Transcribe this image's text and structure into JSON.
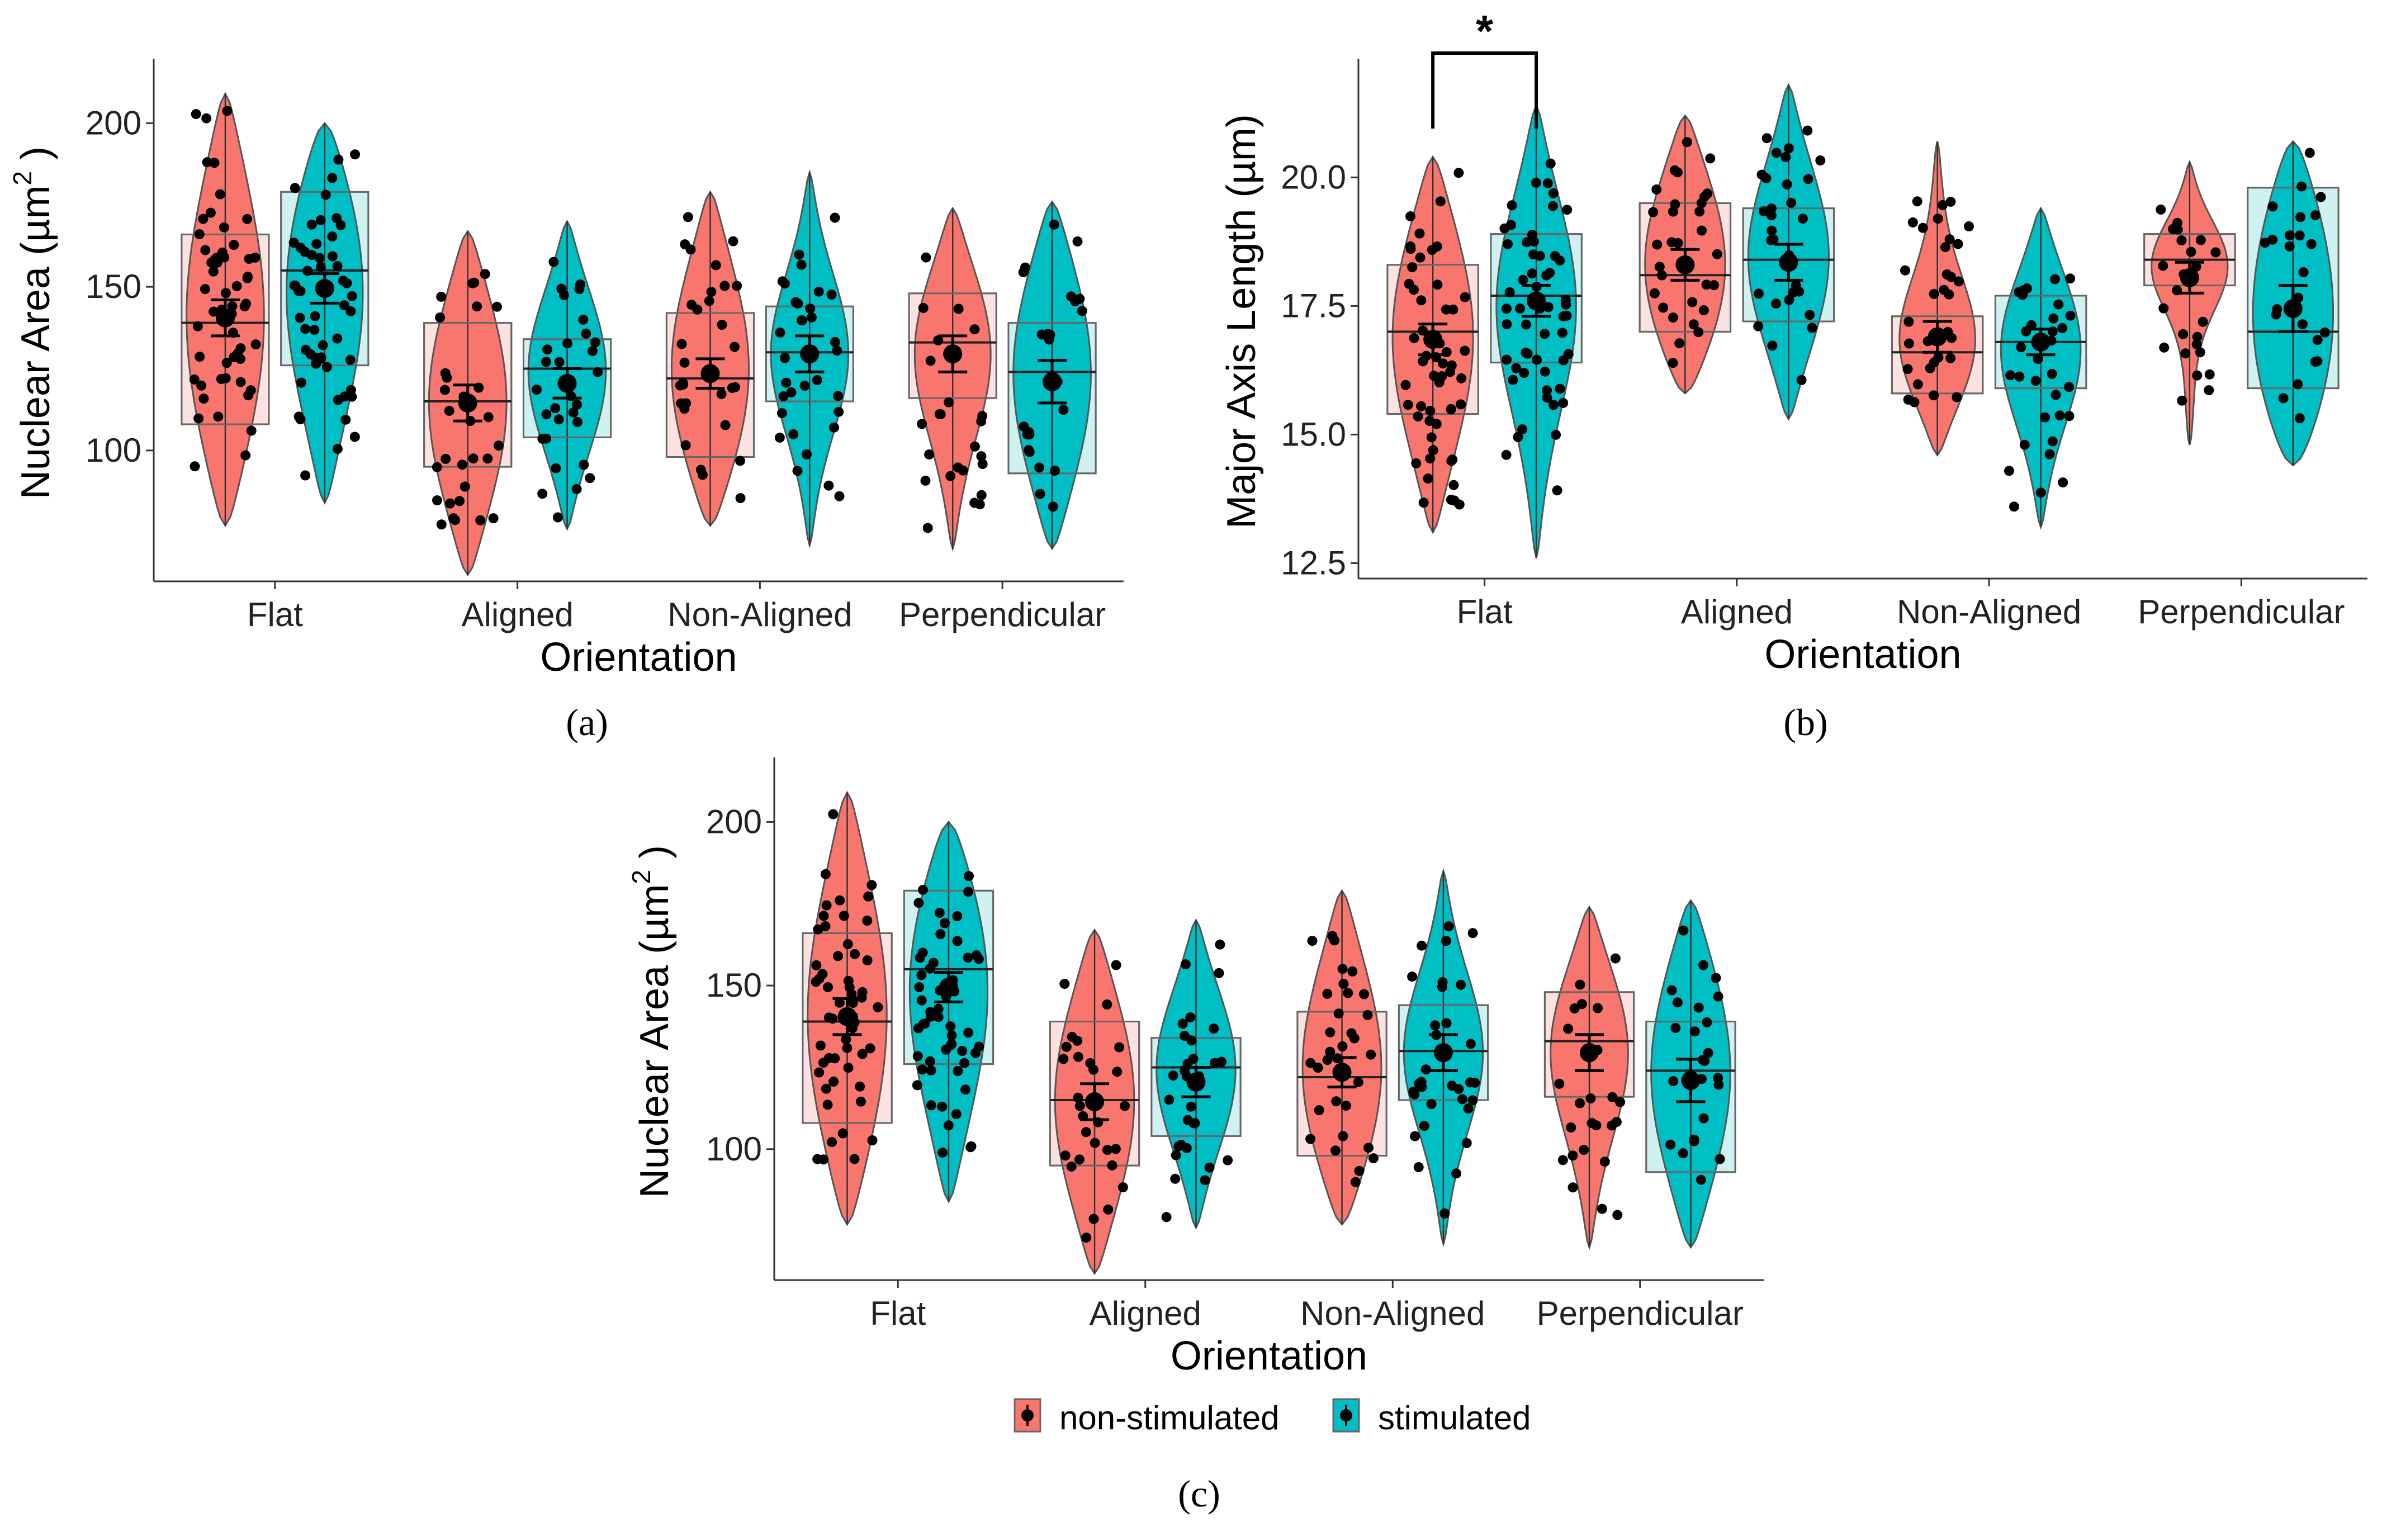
{
  "colors": {
    "nonstim": "#F8766D",
    "stim": "#00BFC4",
    "box_nonstim": "#FBE1E0",
    "box_stim": "#D0F1F2",
    "points": "#000000"
  },
  "captions": [
    "(a)",
    "(b)",
    "(c)"
  ],
  "legend": {
    "items": [
      "non-stimulated",
      "stimulated"
    ],
    "placement": "bottom"
  },
  "chart_data": [
    {
      "id": "a",
      "type": "violin",
      "xlabel": "Orientation",
      "ylabel": "Nuclear Area (µm",
      "ylabel_sup": "2",
      "ylabel_close": " )",
      "ylim": [
        60,
        218
      ],
      "yticks": [
        100,
        150,
        200
      ],
      "categories": [
        "Flat",
        "Aligned",
        "Non-Aligned",
        "Perpendicular"
      ],
      "series": [
        {
          "group": "non-stimulated",
          "stats": [
            {
              "min": 77,
              "max": 209,
              "q1": 108,
              "median": 139,
              "q3": 166,
              "mean": 140.5,
              "se": 5.5,
              "n": 55
            },
            {
              "min": 62,
              "max": 167,
              "q1": 95,
              "median": 115,
              "q3": 139,
              "mean": 114.5,
              "se": 5.5,
              "n": 30
            },
            {
              "min": 77,
              "max": 179,
              "q1": 98,
              "median": 122,
              "q3": 142,
              "mean": 123.5,
              "se": 4.5,
              "n": 32
            },
            {
              "min": 70,
              "max": 174,
              "q1": 116,
              "median": 133,
              "q3": 148,
              "mean": 129.5,
              "se": 5.5,
              "n": 24
            }
          ]
        },
        {
          "group": "stimulated",
          "stats": [
            {
              "min": 84,
              "max": 200,
              "q1": 126,
              "median": 155,
              "q3": 179,
              "mean": 149.5,
              "se": 4.5,
              "n": 55
            },
            {
              "min": 76,
              "max": 170,
              "q1": 104,
              "median": 125,
              "q3": 134,
              "mean": 120.5,
              "se": 4.5,
              "n": 30
            },
            {
              "min": 71,
              "max": 185,
              "q1": 115,
              "median": 130,
              "q3": 144,
              "mean": 129.5,
              "se": 5.5,
              "n": 32
            },
            {
              "min": 70,
              "max": 176,
              "q1": 93,
              "median": 124,
              "q3": 139,
              "mean": 121.0,
              "se": 6.5,
              "n": 24
            }
          ]
        }
      ]
    },
    {
      "id": "b",
      "type": "violin",
      "xlabel": "Orientation",
      "ylabel": "Major Axis Length (µm)",
      "ylim": [
        12.2,
        22.2
      ],
      "yticks": [
        12.5,
        15.0,
        17.5,
        20.0
      ],
      "significance": {
        "label": "*",
        "between": [
          "Flat non-stimulated",
          "Flat stimulated"
        ]
      },
      "categories": [
        "Flat",
        "Aligned",
        "Non-Aligned",
        "Perpendicular"
      ],
      "series": [
        {
          "group": "non-stimulated",
          "stats": [
            {
              "min": 13.1,
              "max": 20.4,
              "q1": 15.4,
              "median": 17.0,
              "q3": 18.3,
              "mean": 16.85,
              "se": 0.3,
              "n": 55
            },
            {
              "min": 15.8,
              "max": 21.2,
              "q1": 17.0,
              "median": 18.1,
              "q3": 19.5,
              "mean": 18.3,
              "se": 0.3,
              "n": 30
            },
            {
              "min": 14.6,
              "max": 20.7,
              "q1": 15.8,
              "median": 16.6,
              "q3": 17.3,
              "mean": 16.9,
              "se": 0.3,
              "n": 32
            },
            {
              "min": 14.8,
              "max": 20.3,
              "q1": 17.9,
              "median": 18.4,
              "q3": 18.9,
              "mean": 18.05,
              "se": 0.3,
              "n": 24
            }
          ]
        },
        {
          "group": "stimulated",
          "stats": [
            {
              "min": 12.6,
              "max": 21.4,
              "q1": 16.4,
              "median": 17.7,
              "q3": 18.9,
              "mean": 17.6,
              "se": 0.3,
              "n": 55
            },
            {
              "min": 15.3,
              "max": 21.8,
              "q1": 17.2,
              "median": 18.4,
              "q3": 19.4,
              "mean": 18.35,
              "se": 0.35,
              "n": 30
            },
            {
              "min": 13.2,
              "max": 19.4,
              "q1": 15.9,
              "median": 16.8,
              "q3": 17.7,
              "mean": 16.8,
              "se": 0.25,
              "n": 32
            },
            {
              "min": 14.4,
              "max": 20.7,
              "q1": 15.9,
              "median": 17.0,
              "q3": 19.8,
              "mean": 17.45,
              "se": 0.45,
              "n": 24
            }
          ]
        }
      ]
    },
    {
      "id": "c",
      "type": "violin",
      "xlabel": "Orientation",
      "ylabel": "Nuclear Area (µm",
      "ylabel_sup": "2",
      "ylabel_close": " )",
      "ylim": [
        60,
        218
      ],
      "yticks": [
        100,
        150,
        200
      ],
      "categories": [
        "Flat",
        "Aligned",
        "Non-Aligned",
        "Perpendicular"
      ],
      "series": [
        {
          "group": "non-stimulated",
          "stats": [
            {
              "min": 77,
              "max": 209,
              "q1": 108,
              "median": 139,
              "q3": 166,
              "mean": 140.5,
              "se": 5.5,
              "n": 55
            },
            {
              "min": 62,
              "max": 167,
              "q1": 95,
              "median": 115,
              "q3": 139,
              "mean": 114.5,
              "se": 5.5,
              "n": 30
            },
            {
              "min": 77,
              "max": 179,
              "q1": 98,
              "median": 122,
              "q3": 142,
              "mean": 123.5,
              "se": 4.5,
              "n": 32
            },
            {
              "min": 70,
              "max": 174,
              "q1": 116,
              "median": 133,
              "q3": 148,
              "mean": 129.5,
              "se": 5.5,
              "n": 24
            }
          ]
        },
        {
          "group": "stimulated",
          "stats": [
            {
              "min": 84,
              "max": 200,
              "q1": 126,
              "median": 155,
              "q3": 179,
              "mean": 149.5,
              "se": 4.5,
              "n": 55
            },
            {
              "min": 76,
              "max": 170,
              "q1": 104,
              "median": 125,
              "q3": 134,
              "mean": 120.5,
              "se": 4.5,
              "n": 30
            },
            {
              "min": 71,
              "max": 185,
              "q1": 115,
              "median": 130,
              "q3": 144,
              "mean": 129.5,
              "se": 5.5,
              "n": 32
            },
            {
              "min": 70,
              "max": 176,
              "q1": 93,
              "median": 124,
              "q3": 139,
              "mean": 121.0,
              "se": 6.5,
              "n": 24
            }
          ]
        }
      ]
    }
  ]
}
